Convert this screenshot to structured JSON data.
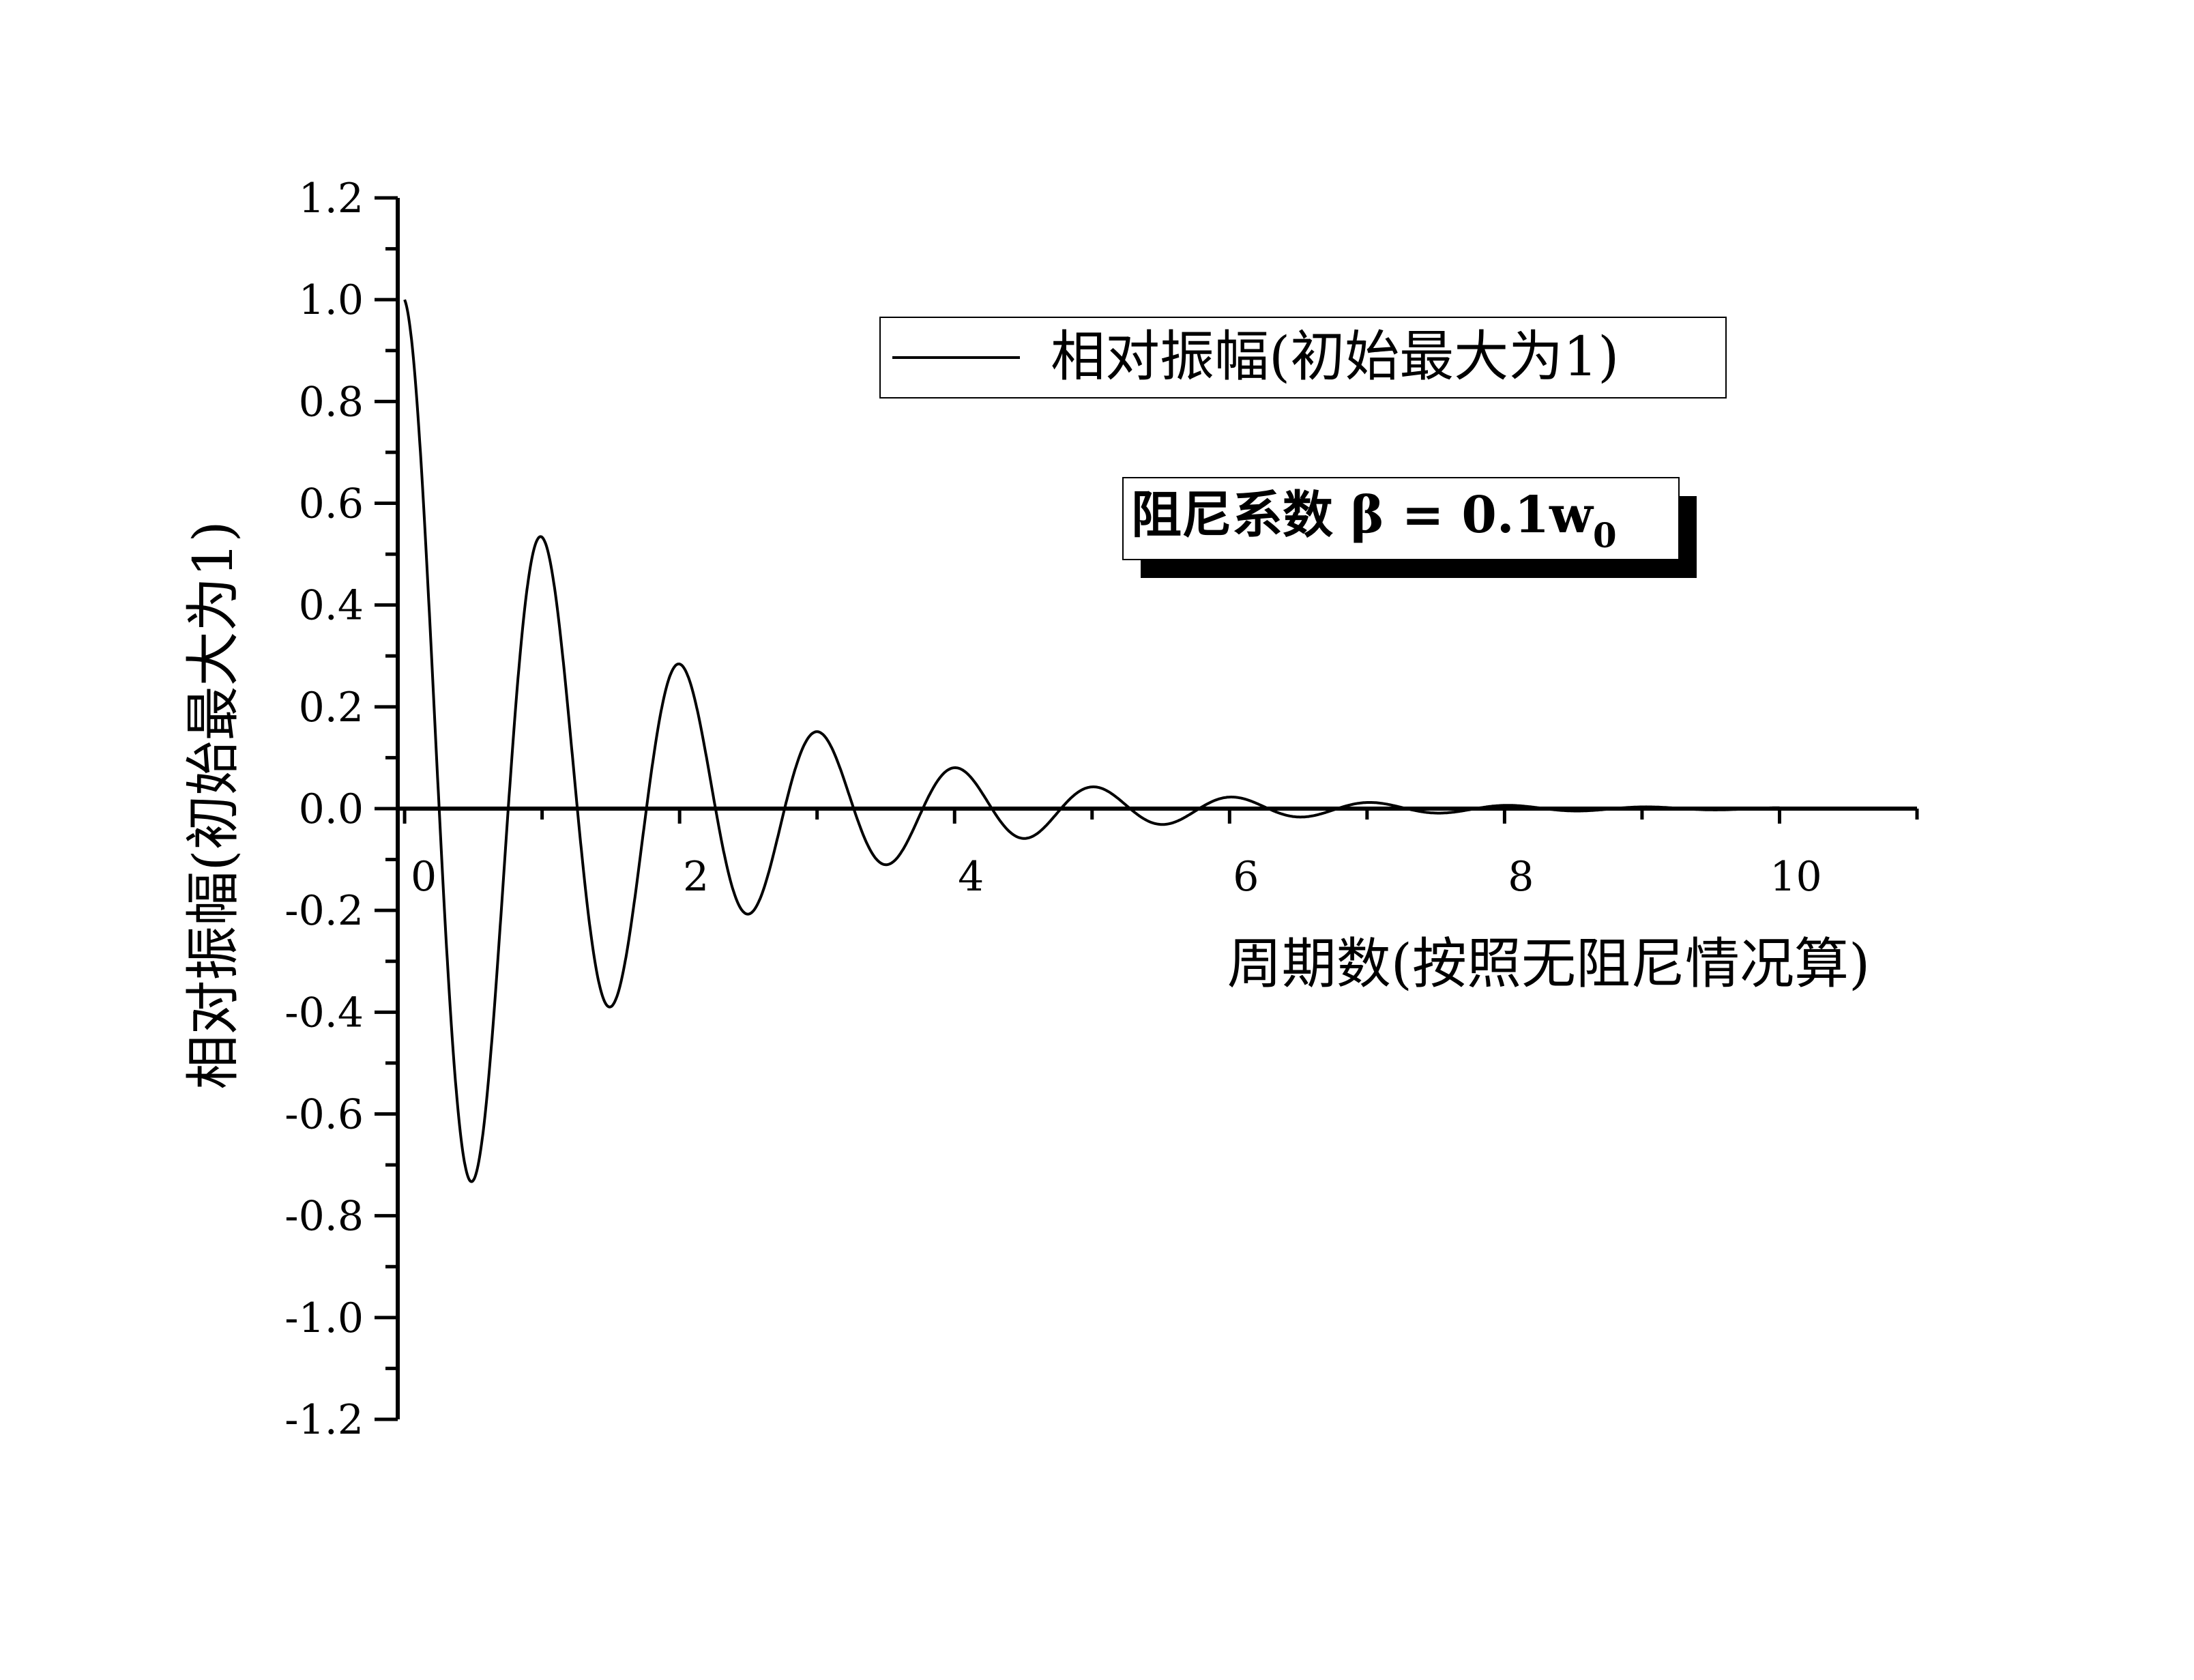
{
  "chart_data": {
    "type": "line",
    "xlabel": "周期数(按照无阻尼情况算)",
    "ylabel": "相对振幅(初始最大为1)",
    "xlim": [
      -0.05,
      11
    ],
    "ylim": [
      -1.2,
      1.2
    ],
    "x_ticks": [
      0,
      2,
      4,
      6,
      8,
      10
    ],
    "x_tick_labels": [
      "0",
      "2",
      "4",
      "6",
      "8",
      "10"
    ],
    "y_ticks": [
      -1.2,
      -1.0,
      -0.8,
      -0.6,
      -0.4,
      -0.2,
      0.0,
      0.2,
      0.4,
      0.6,
      0.8,
      1.0,
      1.2
    ],
    "y_tick_labels": [
      "-1.2",
      "-1.0",
      "-0.8",
      "-0.6",
      "-0.4",
      "-0.2",
      "0.0",
      "0.2",
      "0.4",
      "0.6",
      "0.8",
      "1.0",
      "1.2"
    ],
    "legend": {
      "position": "top-right",
      "entries": [
        "相对振幅(初始最大为1)"
      ]
    },
    "annotation": {
      "text": "阻尼系数 β = 0.1w",
      "subscript": "0"
    },
    "series": [
      {
        "name": "相对振幅(初始最大为1)",
        "function": "exp(-0.1*2*pi*t) * cos(2*pi*t*sqrt(0.99))",
        "x_range": [
          0,
          10
        ],
        "peaks": [
          {
            "x": 0.0,
            "y": 1.0
          },
          {
            "x": 0.5,
            "y": -0.73
          },
          {
            "x": 1.0,
            "y": 0.53
          },
          {
            "x": 1.5,
            "y": -0.39
          },
          {
            "x": 2.0,
            "y": 0.28
          },
          {
            "x": 2.5,
            "y": -0.21
          },
          {
            "x": 3.0,
            "y": 0.15
          },
          {
            "x": 3.5,
            "y": -0.11
          },
          {
            "x": 4.0,
            "y": 0.08
          },
          {
            "x": 4.5,
            "y": -0.06
          },
          {
            "x": 5.0,
            "y": 0.04
          },
          {
            "x": 5.5,
            "y": -0.03
          },
          {
            "x": 6.0,
            "y": 0.02
          },
          {
            "x": 6.5,
            "y": -0.015
          },
          {
            "x": 7.0,
            "y": 0.01
          }
        ]
      }
    ],
    "grid": false,
    "colors": {
      "line": "#000000",
      "background": "#ffffff"
    }
  }
}
